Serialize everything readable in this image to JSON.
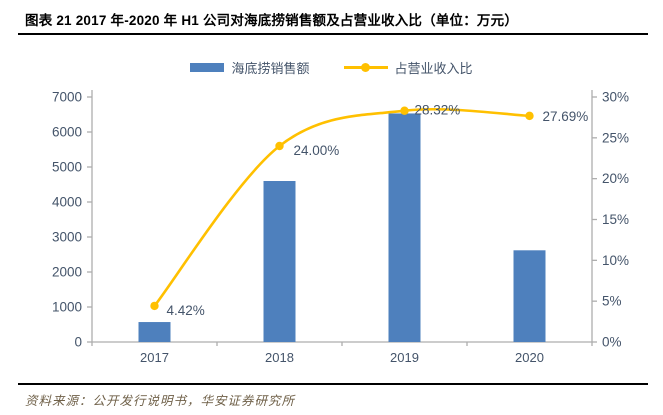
{
  "title": "图表 21 2017 年-2020 年 H1 公司对海底捞销售额及占营业收入比（单位：万元）",
  "source": "资料来源：公开发行说明书，华安证券研究所",
  "legend": {
    "bar_label": "海底捞销售额",
    "line_label": "占营业收入比"
  },
  "colors": {
    "bar": "#4E80BD",
    "line": "#FFC000",
    "axis_text": "#44546A",
    "axis_line": "#ADADAD",
    "title_text": "#000000",
    "source_text": "#6F6048"
  },
  "chart_data": {
    "type": "bar",
    "subtype": "bar+line combo, dual axis",
    "categories": [
      "2017",
      "2018",
      "2019",
      "2020"
    ],
    "series": [
      {
        "name": "海底捞销售额",
        "type": "bar",
        "axis": "left",
        "values": [
          570,
          4600,
          6530,
          2620
        ]
      },
      {
        "name": "占营业收入比",
        "type": "line",
        "axis": "right",
        "values": [
          4.42,
          24.0,
          28.32,
          27.69
        ],
        "point_labels": [
          "4.42%",
          "24.00%",
          "28.32%",
          "27.69%"
        ]
      }
    ],
    "title": "2017 年-2020 年 H1 公司对海底捞销售额及占营业收入比（单位：万元）",
    "xlabel": "",
    "ylabel": "",
    "left_axis": {
      "min": 0,
      "max": 7000,
      "step": 1000,
      "ticks": [
        "0",
        "1000",
        "2000",
        "3000",
        "4000",
        "5000",
        "6000",
        "7000"
      ]
    },
    "right_axis": {
      "min": 0,
      "max": 30,
      "step": 5,
      "ticks": [
        "0%",
        "5%",
        "10%",
        "15%",
        "20%",
        "25%",
        "30%"
      ]
    },
    "grid": false,
    "legend_position": "top"
  }
}
